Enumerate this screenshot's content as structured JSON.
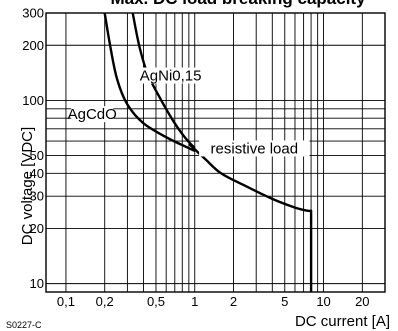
{
  "chart_data": {
    "type": "line",
    "title": "Max. DC load breaking capacity",
    "xlabel": "DC current [A]",
    "ylabel": "DC voltage [VDC]",
    "x_scale": "log",
    "y_scale": "log",
    "xlim": [
      0.07,
      30
    ],
    "ylim": [
      9,
      300
    ],
    "grid": true,
    "x_ticks": [
      {
        "value": 0.1,
        "label": "0,1"
      },
      {
        "value": 0.2,
        "label": "0,2"
      },
      {
        "value": 0.5,
        "label": "0,5"
      },
      {
        "value": 1,
        "label": "1"
      },
      {
        "value": 2,
        "label": "2"
      },
      {
        "value": 5,
        "label": "5"
      },
      {
        "value": 10,
        "label": "10"
      },
      {
        "value": 20,
        "label": "20"
      }
    ],
    "y_ticks": [
      {
        "value": 10,
        "label": "10"
      },
      {
        "value": 20,
        "label": "20"
      },
      {
        "value": 30,
        "label": "30"
      },
      {
        "value": 40,
        "label": "40"
      },
      {
        "value": 50,
        "label": "50"
      },
      {
        "value": 100,
        "label": "100"
      },
      {
        "value": 200,
        "label": "200"
      },
      {
        "value": 300,
        "label": "300"
      }
    ],
    "series": [
      {
        "name": "AgCdO",
        "x": [
          0.2,
          0.22,
          0.25,
          0.3,
          0.4,
          0.6,
          0.8,
          1.0
        ],
        "y": [
          300,
          200,
          130,
          95,
          75,
          63,
          57,
          53
        ]
      },
      {
        "name": "AgNi0,15",
        "x": [
          0.33,
          0.37,
          0.43,
          0.55,
          0.7,
          0.85,
          1.0
        ],
        "y": [
          300,
          200,
          140,
          100,
          75,
          62,
          55
        ]
      },
      {
        "name": "resistive load",
        "x": [
          0.9,
          1.2,
          1.6,
          2.5,
          4.0,
          6.0,
          7.5,
          8.0,
          8.0
        ],
        "y": [
          58,
          48,
          40,
          34,
          29,
          26,
          25,
          25,
          9
        ]
      }
    ],
    "annotation": "S0227-C"
  }
}
